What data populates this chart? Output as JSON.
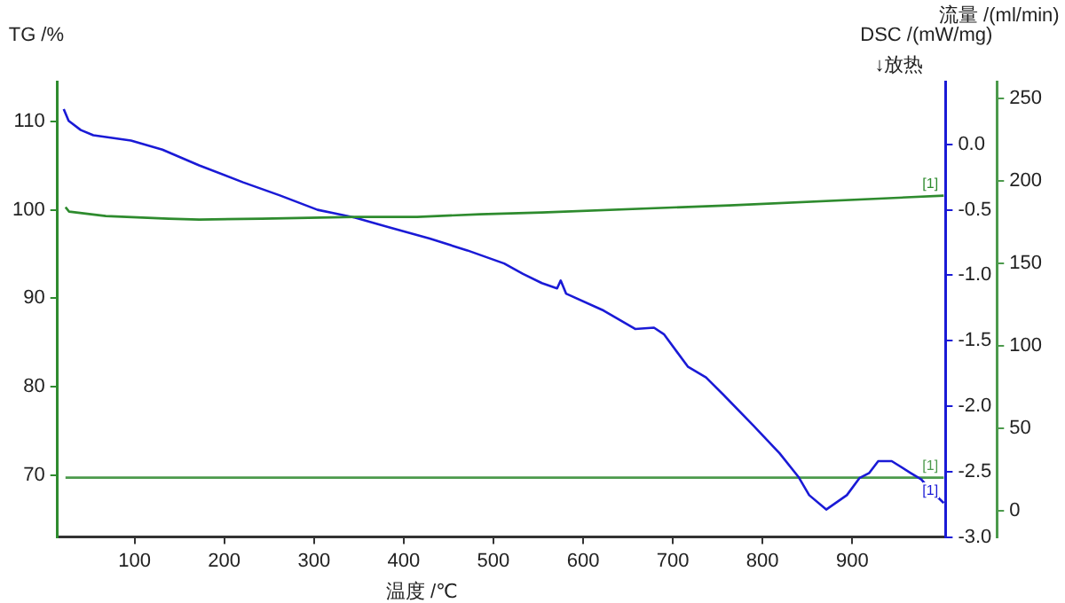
{
  "chart_data": {
    "type": "line",
    "xlabel": "温度 /℃",
    "ylabel": "TG /%",
    "y2label": "DSC /(mW/mg)",
    "y3label": "流量 /(ml/min)",
    "xlim": [
      14,
      1004
    ],
    "xticks": [
      100,
      200,
      300,
      400,
      500,
      600,
      700,
      800,
      900
    ],
    "ylim": [
      63,
      114.5
    ],
    "yticks": [
      70,
      80,
      90,
      100,
      110
    ],
    "y2lim": [
      -3.0,
      0.48
    ],
    "y2ticks": [
      {
        "value": 0,
        "label": "0.0"
      },
      -0.5,
      {
        "value": -1,
        "label": "-1.0"
      },
      -1.5,
      {
        "value": -2,
        "label": "-2.0"
      },
      -2.5,
      {
        "value": -3,
        "label": "-3.0"
      }
    ],
    "y3lim": [
      -16,
      260
    ],
    "y3ticks": [
      0,
      50,
      100,
      150,
      200,
      250
    ],
    "grid": false,
    "legend": false,
    "marker": "none",
    "line_style": "solid",
    "series": [
      {
        "color": "#2e8b2e",
        "x": [
          23,
          27,
          68,
          138,
          172,
          242,
          346,
          415,
          485,
          554,
          763,
          1002
        ],
        "values": [
          100.3,
          99.8,
          99.3,
          99.0,
          98.9,
          99.0,
          99.2,
          99.2,
          99.5,
          99.7,
          100.5,
          101.6
        ]
      },
      {
        "color": "#1a1ad6",
        "axis": "y2",
        "x": [
          21,
          26.5,
          40,
          54,
          75,
          96,
          131,
          172,
          221,
          262,
          304,
          325,
          346,
          387,
          429,
          471,
          512,
          533,
          554,
          571,
          575,
          581,
          623,
          658,
          679,
          690,
          717,
          737,
          756,
          790,
          819,
          840,
          852,
          871,
          894,
          908,
          919,
          929,
          944,
          965,
          977,
          987,
          1002
        ],
        "values": [
          0.27,
          0.18,
          0.11,
          0.07,
          0.05,
          0.03,
          -0.04,
          -0.16,
          -0.29,
          -0.39,
          -0.5,
          -0.53,
          -0.56,
          -0.64,
          -0.72,
          -0.81,
          -0.91,
          -0.99,
          -1.06,
          -1.1,
          -1.04,
          -1.14,
          -1.27,
          -1.41,
          -1.4,
          -1.45,
          -1.7,
          -1.78,
          -1.91,
          -2.15,
          -2.36,
          -2.54,
          -2.68,
          -2.79,
          -2.68,
          -2.55,
          -2.51,
          -2.42,
          -2.42,
          -2.51,
          -2.56,
          -2.64,
          -2.74
        ]
      },
      {
        "color": "#4c9a4c",
        "axis": "y3",
        "x": [
          23,
          1002
        ],
        "values": [
          20,
          20
        ]
      }
    ],
    "annotations": [
      "↓放热",
      "[1]",
      "[1]",
      "[1]"
    ]
  }
}
